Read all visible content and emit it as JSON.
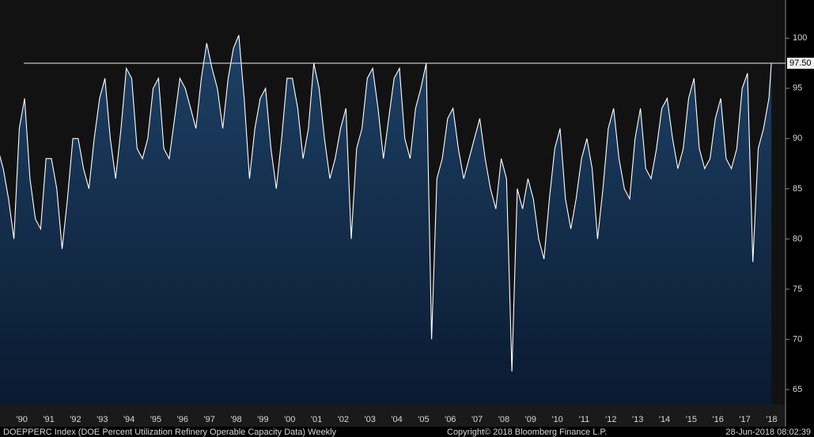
{
  "chart_data": {
    "type": "area",
    "x": [
      1989.6,
      1989.8,
      1990.0,
      1990.2,
      1990.4,
      1990.6,
      1990.8,
      1991.0,
      1991.2,
      1991.4,
      1991.6,
      1991.8,
      1992.0,
      1992.2,
      1992.4,
      1992.6,
      1992.8,
      1993.0,
      1993.2,
      1993.4,
      1993.6,
      1993.8,
      1994.0,
      1994.2,
      1994.4,
      1994.6,
      1994.8,
      1995.0,
      1995.2,
      1995.4,
      1995.6,
      1995.8,
      1996.0,
      1996.2,
      1996.4,
      1996.6,
      1996.8,
      1997.0,
      1997.2,
      1997.4,
      1997.6,
      1997.8,
      1998.0,
      1998.2,
      1998.4,
      1998.6,
      1998.8,
      1999.0,
      1999.2,
      1999.4,
      1999.6,
      1999.8,
      2000.0,
      2000.2,
      2000.4,
      2000.6,
      2000.8,
      2001.0,
      2001.2,
      2001.4,
      2001.6,
      2001.8,
      2002.0,
      2002.2,
      2002.4,
      2002.6,
      2002.8,
      2003.0,
      2003.2,
      2003.4,
      2003.6,
      2003.8,
      2004.0,
      2004.2,
      2004.4,
      2004.6,
      2004.8,
      2005.0,
      2005.2,
      2005.4,
      2005.6,
      2005.8,
      2006.0,
      2006.2,
      2006.4,
      2006.6,
      2006.8,
      2007.0,
      2007.2,
      2007.4,
      2007.6,
      2007.8,
      2008.0,
      2008.2,
      2008.4,
      2008.6,
      2008.8,
      2009.0,
      2009.2,
      2009.4,
      2009.6,
      2009.8,
      2010.0,
      2010.2,
      2010.4,
      2010.6,
      2010.8,
      2011.0,
      2011.2,
      2011.4,
      2011.6,
      2011.8,
      2012.0,
      2012.2,
      2012.4,
      2012.6,
      2012.8,
      2013.0,
      2013.2,
      2013.4,
      2013.6,
      2013.8,
      2014.0,
      2014.2,
      2014.4,
      2014.6,
      2014.8,
      2015.0,
      2015.2,
      2015.4,
      2015.6,
      2015.8,
      2016.0,
      2016.2,
      2016.4,
      2016.6,
      2016.8,
      2017.0,
      2017.2,
      2017.4,
      2017.6,
      2017.8,
      2018.0,
      2018.2,
      2018.4,
      2018.49
    ],
    "values": [
      89,
      87,
      84,
      80,
      91,
      94,
      86,
      82,
      81,
      88,
      88,
      85,
      79,
      84,
      90,
      90,
      87,
      85,
      90,
      94,
      96,
      90,
      86,
      91,
      97,
      96,
      89,
      88,
      90,
      95,
      96,
      89,
      88,
      92,
      96,
      95,
      93,
      91,
      96,
      99.5,
      97,
      95,
      91,
      96,
      99,
      100.3,
      94,
      86,
      91,
      94,
      95,
      89,
      85,
      90,
      96,
      96,
      93,
      88,
      91,
      97.5,
      95,
      90,
      86,
      88,
      91,
      93,
      80,
      89,
      91,
      96,
      97,
      93,
      88,
      92,
      96,
      97,
      90,
      88,
      93,
      95,
      97.5,
      70,
      86,
      88,
      92,
      93,
      89,
      86,
      88,
      90,
      92,
      88,
      85,
      83,
      88,
      86,
      66.8,
      85,
      83,
      86,
      84,
      80,
      78,
      84,
      89,
      91,
      84,
      81,
      84,
      88,
      90,
      87,
      80,
      85,
      91,
      93,
      88,
      85,
      84,
      90,
      93,
      87,
      86,
      89,
      93,
      94,
      90,
      87,
      89,
      94,
      96,
      89,
      87,
      88,
      92,
      94,
      88,
      87,
      89,
      95,
      96.5,
      77.7,
      89,
      91,
      94,
      97.5
    ],
    "xlim": [
      1989.68,
      2019.02
    ],
    "ylim": [
      63.5,
      103.8
    ],
    "yticks": [
      65,
      70,
      75,
      80,
      85,
      90,
      95,
      100
    ],
    "xticks": [
      {
        "value": 1990.5,
        "label": "'90"
      },
      {
        "value": 1991.5,
        "label": "'91"
      },
      {
        "value": 1992.5,
        "label": "'92"
      },
      {
        "value": 1993.5,
        "label": "'93"
      },
      {
        "value": 1994.5,
        "label": "'94"
      },
      {
        "value": 1995.5,
        "label": "'95"
      },
      {
        "value": 1996.5,
        "label": "'96"
      },
      {
        "value": 1997.5,
        "label": "'97"
      },
      {
        "value": 1998.5,
        "label": "'98"
      },
      {
        "value": 1999.5,
        "label": "'99"
      },
      {
        "value": 2000.5,
        "label": "'00"
      },
      {
        "value": 2001.5,
        "label": "'01"
      },
      {
        "value": 2002.5,
        "label": "'02"
      },
      {
        "value": 2003.5,
        "label": "'03"
      },
      {
        "value": 2004.5,
        "label": "'04"
      },
      {
        "value": 2005.5,
        "label": "'05"
      },
      {
        "value": 2006.5,
        "label": "'06"
      },
      {
        "value": 2007.5,
        "label": "'07"
      },
      {
        "value": 2008.5,
        "label": "'08"
      },
      {
        "value": 2009.5,
        "label": "'09"
      },
      {
        "value": 2010.5,
        "label": "'10"
      },
      {
        "value": 2011.5,
        "label": "'11"
      },
      {
        "value": 2012.5,
        "label": "'12"
      },
      {
        "value": 2013.5,
        "label": "'13"
      },
      {
        "value": 2014.5,
        "label": "'14"
      },
      {
        "value": 2015.5,
        "label": "'15"
      },
      {
        "value": 2016.5,
        "label": "'16"
      },
      {
        "value": 2017.5,
        "label": "'17"
      },
      {
        "value": 2018.5,
        "label": "'18"
      }
    ],
    "hline": {
      "value": 97.5,
      "label": "97.50"
    },
    "line_color": "#ffffff",
    "fill_top": "#1e4166",
    "fill_bottom": "#0a1a30",
    "footer": {
      "left": "DOEPPERC Index (DOE Percent Utilization Refinery Operable Capacity Data)  Weekly",
      "center": "Copyright© 2018 Bloomberg Finance L.P.",
      "right": "28-Jun-2018 08:02:39"
    }
  }
}
